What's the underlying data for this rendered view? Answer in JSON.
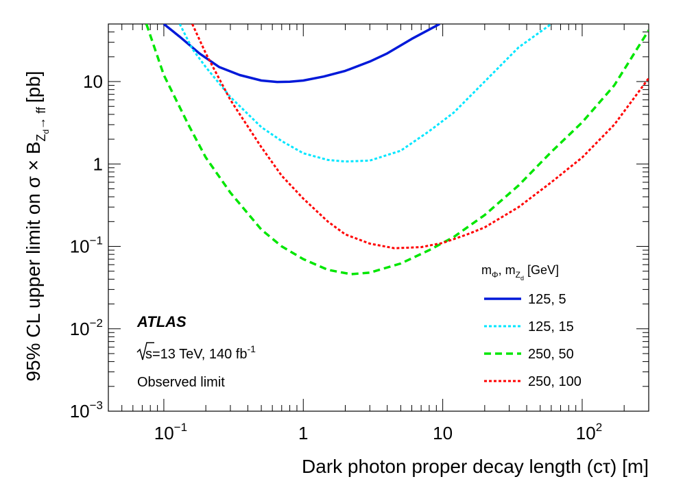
{
  "chart_data": {
    "type": "line",
    "x_scale": "log",
    "y_scale": "log",
    "xlim": [
      0.04,
      300
    ],
    "ylim": [
      0.001,
      50
    ],
    "xlabel": "Dark photon proper decay length (cτ) [m]",
    "ylabel": {
      "prefix": "95% CL upper limit on σ × B",
      "sub": "Z",
      "subsub": "d",
      "sub_tail": "→ ff",
      "suffix": "[pb]"
    },
    "x_ticks": [
      {
        "value": 0.1,
        "base": "10",
        "exp": "−1"
      },
      {
        "value": 1,
        "base": "1",
        "exp": ""
      },
      {
        "value": 10,
        "base": "10",
        "exp": ""
      },
      {
        "value": 100,
        "base": "10",
        "exp": "2"
      }
    ],
    "y_ticks": [
      {
        "value": 0.001,
        "base": "10",
        "exp": "−3"
      },
      {
        "value": 0.01,
        "base": "10",
        "exp": "−2"
      },
      {
        "value": 0.1,
        "base": "10",
        "exp": "−1"
      },
      {
        "value": 1,
        "base": "1",
        "exp": ""
      },
      {
        "value": 10,
        "base": "10",
        "exp": ""
      }
    ],
    "grid": false,
    "annotations": {
      "experiment": "ATLAS",
      "energy_sqrt": "s",
      "energy_text": "=13 TeV, 140 fb",
      "energy_exp": "-1",
      "limit_type": "Observed limit"
    },
    "legend": {
      "placement": "bottom-right",
      "header": {
        "m1": "m",
        "m1_sub": "Φ",
        "sep": ", ",
        "m2": "m",
        "m2_sub": "Z",
        "m2_subsub": "d",
        "unit": " [GeV]"
      }
    },
    "series": [
      {
        "name": "125, 5",
        "color": "#0019d9",
        "style": "solid",
        "x": [
          0.1,
          0.13,
          0.18,
          0.25,
          0.35,
          0.5,
          0.65,
          0.8,
          1.0,
          1.4,
          2.0,
          3.0,
          4.0,
          6.0,
          9.5
        ],
        "y": [
          50,
          35,
          22,
          15,
          12,
          10.3,
          9.9,
          9.95,
          10.3,
          11.5,
          13.5,
          17.5,
          22,
          33,
          50
        ]
      },
      {
        "name": "125, 15",
        "color": "#00e6ff",
        "style": "dotted",
        "x": [
          0.13,
          0.16,
          0.2,
          0.3,
          0.5,
          0.7,
          1.0,
          1.5,
          2.0,
          3.0,
          5.0,
          8.0,
          12,
          20,
          35,
          60
        ],
        "y": [
          50,
          25,
          15,
          6.5,
          2.8,
          1.9,
          1.35,
          1.12,
          1.07,
          1.1,
          1.45,
          2.5,
          4.2,
          10,
          26,
          50
        ]
      },
      {
        "name": "250, 50",
        "color": "#00e600",
        "style": "dashed",
        "x": [
          0.075,
          0.1,
          0.15,
          0.2,
          0.3,
          0.5,
          0.7,
          1.0,
          1.5,
          2.2,
          3.0,
          5.0,
          8.0,
          12,
          20,
          35,
          60,
          100,
          170,
          300
        ],
        "y": [
          50,
          12,
          3,
          1.2,
          0.45,
          0.16,
          0.1,
          0.07,
          0.052,
          0.046,
          0.048,
          0.062,
          0.09,
          0.13,
          0.24,
          0.55,
          1.4,
          3.2,
          9,
          42
        ]
      },
      {
        "name": "250, 100",
        "color": "#ff0000",
        "style": "dotted",
        "x": [
          0.16,
          0.2,
          0.3,
          0.5,
          0.7,
          1.0,
          1.5,
          2.0,
          3.0,
          4.5,
          7.0,
          10,
          15,
          20,
          35,
          60,
          100,
          170,
          300
        ],
        "y": [
          50,
          22,
          6,
          1.6,
          0.72,
          0.38,
          0.2,
          0.14,
          0.108,
          0.095,
          0.098,
          0.11,
          0.14,
          0.17,
          0.3,
          0.6,
          1.2,
          3.0,
          11
        ]
      }
    ]
  }
}
